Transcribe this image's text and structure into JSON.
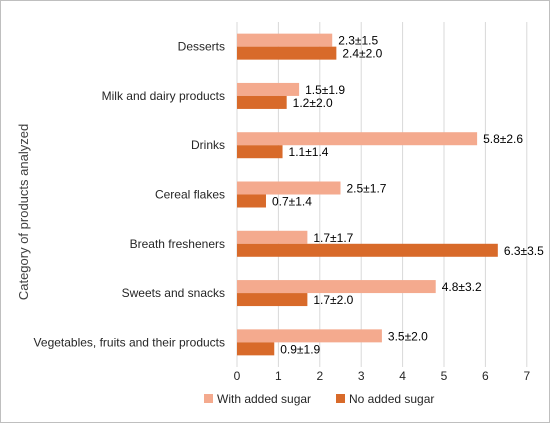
{
  "chart_data": {
    "type": "bar",
    "orientation": "horizontal",
    "ylabel": "Category of products analyzed",
    "xlabel": "",
    "xlim": [
      0,
      7
    ],
    "xticks": [
      0,
      1,
      2,
      3,
      4,
      5,
      6,
      7
    ],
    "grid": true,
    "legend_position": "bottom",
    "categories": [
      "Desserts",
      "Milk and dairy products",
      "Drinks",
      "Cereal flakes",
      "Breath fresheners",
      "Sweets and snacks",
      "Vegetables, fruits and their products"
    ],
    "series": [
      {
        "name": "With added sugar",
        "color": "#F4AA8E",
        "values": [
          2.3,
          1.5,
          5.8,
          2.5,
          1.7,
          4.8,
          3.5
        ],
        "labels": [
          "2.3±1.5",
          "1.5±1.9",
          "5.8±2.6",
          "2.5±1.7",
          "1.7±1.7",
          "4.8±3.2",
          "3.5±2.0"
        ]
      },
      {
        "name": "No added sugar",
        "color": "#D86A2A",
        "values": [
          2.4,
          1.2,
          1.1,
          0.7,
          6.3,
          1.7,
          0.9
        ],
        "labels": [
          "2.4±2.0",
          "1.2±2.0",
          "1.1±1.4",
          "0.7±1.4",
          "6.3±3.5",
          "1.7±2.0",
          "0.9±1.9"
        ]
      }
    ]
  }
}
